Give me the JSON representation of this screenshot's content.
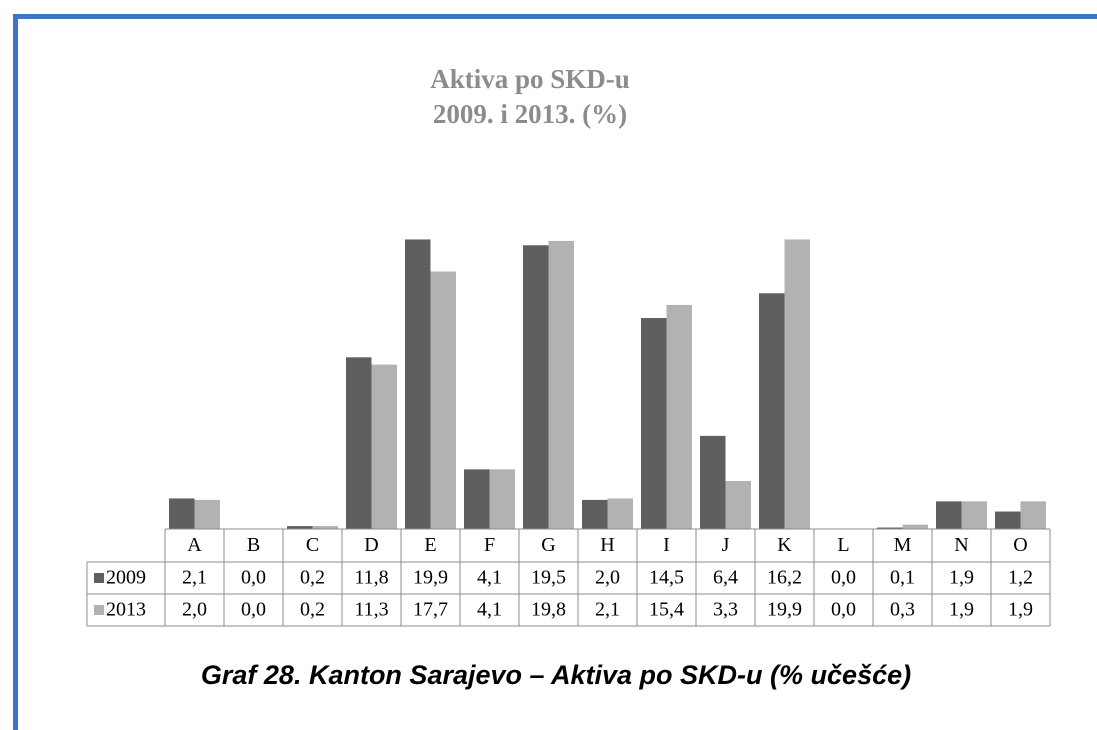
{
  "chart_data": {
    "type": "bar",
    "title": "Aktiva po SKD-u",
    "subtitle": "2009. i 2013. (%)",
    "categories": [
      "A",
      "B",
      "C",
      "D",
      "E",
      "F",
      "G",
      "H",
      "I",
      "J",
      "K",
      "L",
      "M",
      "N",
      "O"
    ],
    "series": [
      {
        "name": "2009",
        "color": "#5f5f5f",
        "values": [
          2.1,
          0.0,
          0.2,
          11.8,
          19.9,
          4.1,
          19.5,
          2.0,
          14.5,
          6.4,
          16.2,
          0.0,
          0.1,
          1.9,
          1.2
        ],
        "value_labels": [
          "2,1",
          "0,0",
          "0,2",
          "11,8",
          "19,9",
          "4,1",
          "19,5",
          "2,0",
          "14,5",
          "6,4",
          "16,2",
          "0,0",
          "0,1",
          "1,9",
          "1,2"
        ]
      },
      {
        "name": "2013",
        "color": "#b2b2b2",
        "values": [
          2.0,
          0.0,
          0.2,
          11.3,
          17.7,
          4.1,
          19.8,
          2.1,
          15.4,
          3.3,
          19.9,
          0.0,
          0.3,
          1.9,
          1.9
        ],
        "value_labels": [
          "2,0",
          "0,0",
          "0,2",
          "11,3",
          "17,7",
          "4,1",
          "19,8",
          "2,1",
          "15,4",
          "3,3",
          "19,9",
          "0,0",
          "0,3",
          "1,9",
          "1,9"
        ]
      }
    ],
    "ylim": [
      0,
      20
    ],
    "caption": "Graf 28. Kanton Sarajevo – Aktiva po SKD-u (% učešće)"
  }
}
